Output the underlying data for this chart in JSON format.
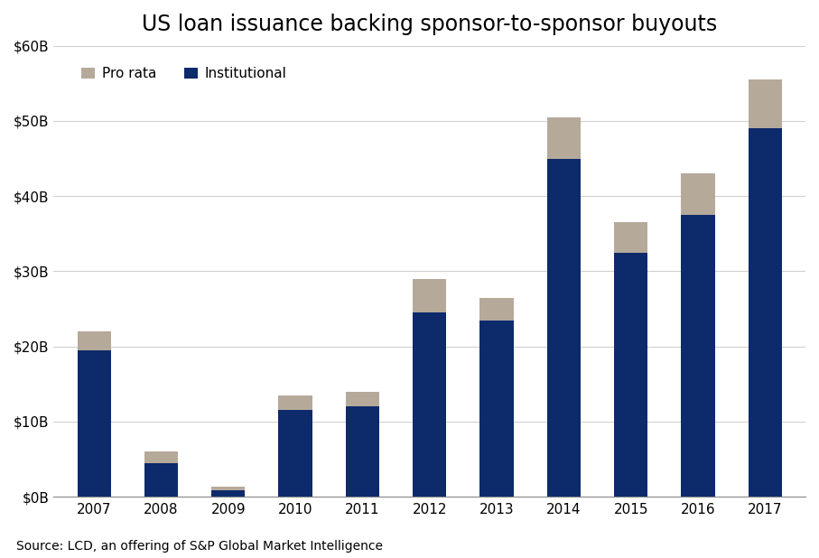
{
  "title": "US loan issuance backing sponsor-to-sponsor buyouts",
  "years": [
    "2007",
    "2008",
    "2009",
    "2010",
    "2011",
    "2012",
    "2013",
    "2014",
    "2015",
    "2016",
    "2017"
  ],
  "institutional": [
    19.5,
    4.5,
    0.8,
    11.5,
    12.0,
    24.5,
    23.5,
    45.0,
    32.5,
    37.5,
    49.0
  ],
  "pro_rata": [
    2.5,
    1.5,
    0.5,
    2.0,
    2.0,
    4.5,
    3.0,
    5.5,
    4.0,
    5.5,
    6.5
  ],
  "institutional_color": "#0d2a6b",
  "pro_rata_color": "#b5a99a",
  "ylim": [
    0,
    60
  ],
  "yticks": [
    0,
    10,
    20,
    30,
    40,
    50,
    60
  ],
  "ytick_labels": [
    "$0B",
    "$10B",
    "$20B",
    "$30B",
    "$40B",
    "$50B",
    "$60B"
  ],
  "legend_labels": [
    "Pro rata",
    "Institutional"
  ],
  "source_text": "Source: LCD, an offering of S&P Global Market Intelligence",
  "background_color": "#ffffff",
  "grid_color": "#d0d0d0",
  "title_fontsize": 17,
  "axis_fontsize": 11,
  "source_fontsize": 10,
  "bar_width": 0.5
}
